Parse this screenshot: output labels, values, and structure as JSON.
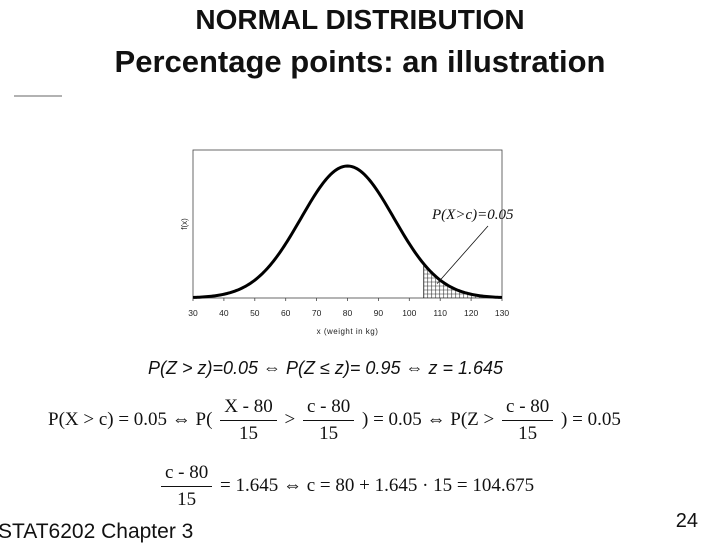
{
  "slide": {
    "title_line1": "NORMAL DISTRIBUTION",
    "title_line2": "Percentage points: an illustration",
    "footer_text": "STAT6202 Chapter 3",
    "page_number": "24"
  },
  "chart_data": {
    "type": "area",
    "distribution": "normal",
    "mean": 80,
    "sd": 15,
    "xlim": [
      30,
      130
    ],
    "xticks": [
      "30",
      "40",
      "50",
      "60",
      "70",
      "80",
      "90",
      "100",
      "110",
      "120",
      "130"
    ],
    "xlabel": "x (weight in kg)",
    "ylabel": "f(x)",
    "shaded_region": {
      "from": 104.675,
      "to": 130
    },
    "annotation": "P(X>c)=0.05"
  },
  "equations": {
    "line1": "P(Z > z)=0.05 ⇔ P(Z ≤ z)= 0.95 ⇔ z = 1.645",
    "line2": {
      "p1_left": "P(X > c) = 0.05 ⇔ P(",
      "f1_num": "X - 80",
      "f1_den": "15",
      "mid1": ">",
      "f2_num": "c - 80",
      "f2_den": "15",
      "p1_right": ") = 0.05 ⇔ P(Z >",
      "f3_num": "c - 80",
      "f3_den": "15",
      "p1_end": ") = 0.05"
    },
    "line3": {
      "f_num": "c - 80",
      "f_den": "15",
      "rest": "= 1.645 ⇔ c = 80 + 1.645 · 15 = 104.675"
    }
  }
}
